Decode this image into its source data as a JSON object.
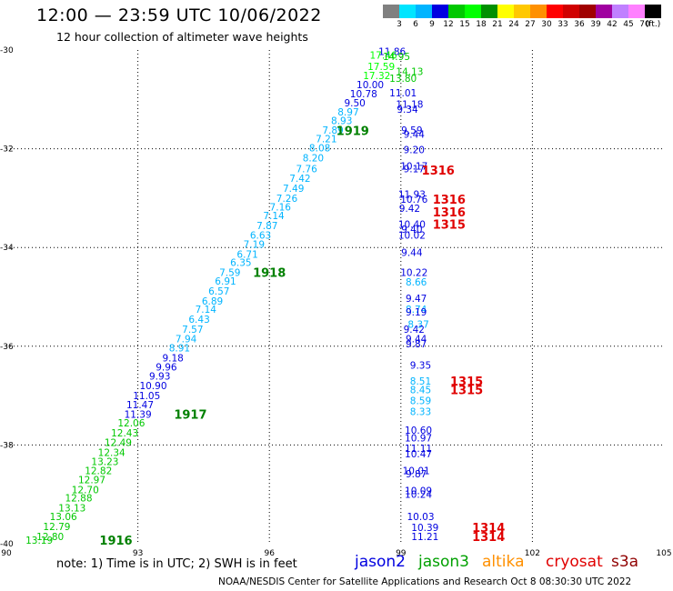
{
  "header": {
    "title": "12:00 — 23:59 UTC 10/06/2022",
    "subtitle": "12 hour collection of altimeter wave heights"
  },
  "legend": {
    "labels": [
      "3",
      "6",
      "9",
      "12",
      "15",
      "18",
      "21",
      "24",
      "27",
      "30",
      "33",
      "36",
      "39",
      "42",
      "45",
      "70",
      "(ft.)"
    ],
    "colors": [
      "#808080",
      "#00e5ff",
      "#00b4ff",
      "#0000e0",
      "#00c800",
      "#00ff00",
      "#009000",
      "#ffff00",
      "#ffc800",
      "#ff9000",
      "#ff0000",
      "#d00000",
      "#a00000",
      "#a000a0",
      "#c080ff",
      "#ff80ff",
      "#000000"
    ]
  },
  "footer": {
    "note": "note:  1) Time is in UTC;  2) SWH is in feet",
    "missions": [
      {
        "name": "jason2",
        "color": "#0000e0"
      },
      {
        "name": "jason3",
        "color": "#00a000"
      },
      {
        "name": "altika",
        "color": "#ff9000"
      },
      {
        "name": "cryosat",
        "color": "#e00000"
      },
      {
        "name": "s3a",
        "color": "#900000"
      }
    ],
    "credit": "NOAA/NESDIS Center for Satellite Applications and Research    Oct  8 08:30:30 UTC 2022"
  },
  "chart_data": {
    "type": "scatter",
    "title": "12:00 — 23:59 UTC 10/06/2022",
    "subtitle": "12 hour collection of altimeter wave heights",
    "xlabel": "",
    "ylabel": "",
    "xlim": [
      90,
      105
    ],
    "ylim": [
      -40,
      -30
    ],
    "xticks": [
      90,
      93,
      96,
      99,
      102,
      105
    ],
    "yticks": [
      -30,
      -32,
      -34,
      -36,
      -38,
      -40
    ],
    "grid": true,
    "color_scale_ft": {
      "bounds": [
        3,
        6,
        9,
        12,
        15,
        18,
        21,
        24,
        27,
        30,
        33,
        36,
        39,
        42,
        45,
        70
      ],
      "colors": [
        "#808080",
        "#00e5ff",
        "#00b4ff",
        "#0000e0",
        "#00c800",
        "#00ff00",
        "#009000",
        "#ffff00",
        "#ffc800",
        "#ff9000",
        "#ff0000",
        "#d00000",
        "#a00000",
        "#a000a0",
        "#c080ff",
        "#ff80ff",
        "#000000"
      ]
    },
    "swh_points": [
      {
        "lon": 98.8,
        "lat": -30.03,
        "v": "11.86"
      },
      {
        "lon": 98.6,
        "lat": -30.1,
        "v": "17.46"
      },
      {
        "lon": 98.9,
        "lat": -30.13,
        "v": "14.95"
      },
      {
        "lon": 98.55,
        "lat": -30.33,
        "v": "17.59"
      },
      {
        "lon": 99.2,
        "lat": -30.43,
        "v": "14.13"
      },
      {
        "lon": 98.45,
        "lat": -30.52,
        "v": "17.32"
      },
      {
        "lon": 99.05,
        "lat": -30.57,
        "v": "13.80"
      },
      {
        "lon": 98.3,
        "lat": -30.7,
        "v": "10.00"
      },
      {
        "lon": 98.15,
        "lat": -30.88,
        "v": "10.78"
      },
      {
        "lon": 99.05,
        "lat": -30.87,
        "v": "11.01"
      },
      {
        "lon": 97.95,
        "lat": -31.07,
        "v": "9.50"
      },
      {
        "lon": 99.2,
        "lat": -31.1,
        "v": "11.18"
      },
      {
        "lon": 97.8,
        "lat": -31.25,
        "v": "8.97"
      },
      {
        "lon": 99.15,
        "lat": -31.2,
        "v": "9.34"
      },
      {
        "lon": 97.65,
        "lat": -31.43,
        "v": "8.93"
      },
      {
        "lon": 97.45,
        "lat": -31.62,
        "v": "7.89"
      },
      {
        "lon": 99.25,
        "lat": -31.62,
        "v": "9.59"
      },
      {
        "lon": 99.3,
        "lat": -31.7,
        "v": "9.44"
      },
      {
        "lon": 97.3,
        "lat": -31.8,
        "v": "7.21"
      },
      {
        "lon": 97.15,
        "lat": -31.98,
        "v": "8.08"
      },
      {
        "lon": 99.3,
        "lat": -32.02,
        "v": "9.20"
      },
      {
        "lon": 97.0,
        "lat": -32.18,
        "v": "8.20"
      },
      {
        "lon": 96.85,
        "lat": -32.4,
        "v": "7.76"
      },
      {
        "lon": 99.3,
        "lat": -32.35,
        "v": "10.17"
      },
      {
        "lon": 99.3,
        "lat": -32.4,
        "v": "9.17"
      },
      {
        "lon": 96.7,
        "lat": -32.6,
        "v": "7.42"
      },
      {
        "lon": 96.55,
        "lat": -32.8,
        "v": "7.49"
      },
      {
        "lon": 96.4,
        "lat": -33.0,
        "v": "7.26"
      },
      {
        "lon": 99.25,
        "lat": -32.92,
        "v": "11.93"
      },
      {
        "lon": 99.3,
        "lat": -33.02,
        "v": "10.76"
      },
      {
        "lon": 96.25,
        "lat": -33.18,
        "v": "7.16"
      },
      {
        "lon": 99.2,
        "lat": -33.2,
        "v": "9.42"
      },
      {
        "lon": 96.1,
        "lat": -33.35,
        "v": "7.14"
      },
      {
        "lon": 95.95,
        "lat": -33.55,
        "v": "7.87"
      },
      {
        "lon": 99.25,
        "lat": -33.53,
        "v": "10.40"
      },
      {
        "lon": 99.25,
        "lat": -33.63,
        "v": "9.40"
      },
      {
        "lon": 95.8,
        "lat": -33.75,
        "v": "6.63"
      },
      {
        "lon": 99.25,
        "lat": -33.75,
        "v": "10.02"
      },
      {
        "lon": 95.65,
        "lat": -33.93,
        "v": "7.19"
      },
      {
        "lon": 95.5,
        "lat": -34.13,
        "v": "6.71"
      },
      {
        "lon": 99.25,
        "lat": -34.1,
        "v": "9.44"
      },
      {
        "lon": 95.35,
        "lat": -34.3,
        "v": "6.35"
      },
      {
        "lon": 95.1,
        "lat": -34.5,
        "v": "7.59"
      },
      {
        "lon": 99.3,
        "lat": -34.5,
        "v": "10.22"
      },
      {
        "lon": 95.0,
        "lat": -34.68,
        "v": "6.91"
      },
      {
        "lon": 99.35,
        "lat": -34.7,
        "v": "8.66"
      },
      {
        "lon": 94.85,
        "lat": -34.88,
        "v": "6.57"
      },
      {
        "lon": 94.7,
        "lat": -35.08,
        "v": "6.89"
      },
      {
        "lon": 99.35,
        "lat": -35.03,
        "v": "9.47"
      },
      {
        "lon": 99.35,
        "lat": -35.25,
        "v": "8.74"
      },
      {
        "lon": 94.55,
        "lat": -35.25,
        "v": "7.14"
      },
      {
        "lon": 99.35,
        "lat": -35.3,
        "v": "9.19"
      },
      {
        "lon": 94.4,
        "lat": -35.45,
        "v": "6.43"
      },
      {
        "lon": 99.4,
        "lat": -35.55,
        "v": "8.37"
      },
      {
        "lon": 94.25,
        "lat": -35.65,
        "v": "7.57"
      },
      {
        "lon": 99.3,
        "lat": -35.65,
        "v": "9.42"
      },
      {
        "lon": 94.1,
        "lat": -35.85,
        "v": "7.94"
      },
      {
        "lon": 99.35,
        "lat": -35.85,
        "v": "9.44"
      },
      {
        "lon": 99.35,
        "lat": -35.95,
        "v": "9.87"
      },
      {
        "lon": 93.95,
        "lat": -36.03,
        "v": "8.91"
      },
      {
        "lon": 93.8,
        "lat": -36.23,
        "v": "9.18"
      },
      {
        "lon": 93.65,
        "lat": -36.42,
        "v": "9.96"
      },
      {
        "lon": 99.45,
        "lat": -36.38,
        "v": "9.35"
      },
      {
        "lon": 93.5,
        "lat": -36.6,
        "v": "9.93"
      },
      {
        "lon": 99.45,
        "lat": -36.7,
        "v": "8.51"
      },
      {
        "lon": 93.35,
        "lat": -36.8,
        "v": "10.90"
      },
      {
        "lon": 99.45,
        "lat": -36.88,
        "v": "8.45"
      },
      {
        "lon": 93.2,
        "lat": -37.0,
        "v": "11.05"
      },
      {
        "lon": 99.45,
        "lat": -37.1,
        "v": "8.59"
      },
      {
        "lon": 93.05,
        "lat": -37.18,
        "v": "11.47"
      },
      {
        "lon": 93.0,
        "lat": -37.38,
        "v": "11.39"
      },
      {
        "lon": 99.45,
        "lat": -37.32,
        "v": "8.33"
      },
      {
        "lon": 92.85,
        "lat": -37.55,
        "v": "12.06"
      },
      {
        "lon": 92.7,
        "lat": -37.75,
        "v": "12.43"
      },
      {
        "lon": 99.4,
        "lat": -37.7,
        "v": "10.60"
      },
      {
        "lon": 92.55,
        "lat": -37.95,
        "v": "12.49"
      },
      {
        "lon": 99.4,
        "lat": -37.85,
        "v": "10.97"
      },
      {
        "lon": 92.4,
        "lat": -38.15,
        "v": "12.34"
      },
      {
        "lon": 99.4,
        "lat": -38.07,
        "v": "11.11"
      },
      {
        "lon": 92.25,
        "lat": -38.33,
        "v": "13.23"
      },
      {
        "lon": 99.4,
        "lat": -38.18,
        "v": "10.47"
      },
      {
        "lon": 92.1,
        "lat": -38.52,
        "v": "12.82"
      },
      {
        "lon": 99.35,
        "lat": -38.52,
        "v": "10.01"
      },
      {
        "lon": 91.95,
        "lat": -38.7,
        "v": "12.97"
      },
      {
        "lon": 99.35,
        "lat": -38.58,
        "v": "9.87"
      },
      {
        "lon": 91.8,
        "lat": -38.9,
        "v": "12.70"
      },
      {
        "lon": 99.4,
        "lat": -38.92,
        "v": "10.09"
      },
      {
        "lon": 99.4,
        "lat": -39.0,
        "v": "10.24"
      },
      {
        "lon": 91.65,
        "lat": -39.07,
        "v": "12.88"
      },
      {
        "lon": 91.5,
        "lat": -39.27,
        "v": "13.13"
      },
      {
        "lon": 91.3,
        "lat": -39.45,
        "v": "13.06"
      },
      {
        "lon": 99.45,
        "lat": -39.45,
        "v": "10.03"
      },
      {
        "lon": 91.15,
        "lat": -39.65,
        "v": "12.79"
      },
      {
        "lon": 99.55,
        "lat": -39.67,
        "v": "10.39"
      },
      {
        "lon": 91.0,
        "lat": -39.85,
        "v": "12.80"
      },
      {
        "lon": 99.55,
        "lat": -39.85,
        "v": "11.21"
      },
      {
        "lon": 90.75,
        "lat": -39.93,
        "v": "13.19"
      }
    ],
    "time_labels": [
      {
        "lon": 97.9,
        "lat": -31.63,
        "v": "1919",
        "color": "#008000"
      },
      {
        "lon": 99.85,
        "lat": -32.43,
        "v": "1316",
        "color": "#e00000"
      },
      {
        "lon": 100.1,
        "lat": -33.02,
        "v": "1316",
        "color": "#e00000"
      },
      {
        "lon": 100.1,
        "lat": -33.28,
        "v": "1316",
        "color": "#e00000"
      },
      {
        "lon": 100.1,
        "lat": -33.53,
        "v": "1315",
        "color": "#e00000"
      },
      {
        "lon": 96.0,
        "lat": -34.5,
        "v": "1918",
        "color": "#008000"
      },
      {
        "lon": 100.5,
        "lat": -36.7,
        "v": "1315",
        "color": "#e00000"
      },
      {
        "lon": 100.5,
        "lat": -36.88,
        "v": "1315",
        "color": "#e00000"
      },
      {
        "lon": 94.2,
        "lat": -37.38,
        "v": "1917",
        "color": "#008000"
      },
      {
        "lon": 101.0,
        "lat": -39.67,
        "v": "1314",
        "color": "#e00000"
      },
      {
        "lon": 101.0,
        "lat": -39.85,
        "v": "1314",
        "color": "#e00000"
      },
      {
        "lon": 92.5,
        "lat": -39.93,
        "v": "1916",
        "color": "#008000"
      }
    ]
  }
}
